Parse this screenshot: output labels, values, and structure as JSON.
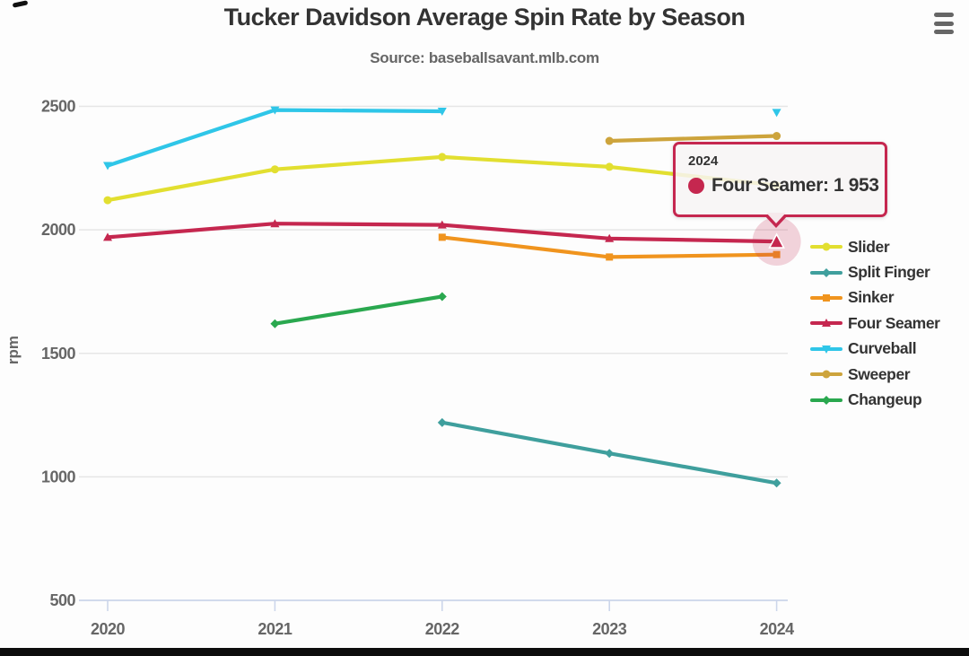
{
  "header": {
    "title": "Tucker Davidson Average Spin Rate by Season",
    "subtitle": "Source: baseballsavant.mlb.com",
    "menu_icon": "hamburger-icon"
  },
  "chart_data": {
    "type": "line",
    "categories": [
      "2020",
      "2021",
      "2022",
      "2023",
      "2024"
    ],
    "xlabel": "",
    "ylabel": "rpm",
    "yticks": [
      500,
      1000,
      1500,
      2000,
      2500
    ],
    "ylim": [
      500,
      2500
    ],
    "grid": "horizontal",
    "legend_position": "right",
    "series": [
      {
        "name": "Slider",
        "color": "#e2df30",
        "marker": "circle",
        "values": [
          2120,
          2245,
          2295,
          2255,
          2180
        ]
      },
      {
        "name": "Split Finger",
        "color": "#3f9f9d",
        "marker": "diamond",
        "values": [
          null,
          null,
          1220,
          1095,
          975
        ]
      },
      {
        "name": "Sinker",
        "color": "#f0941e",
        "marker": "square",
        "values": [
          null,
          null,
          1970,
          1890,
          1900
        ]
      },
      {
        "name": "Four Seamer",
        "color": "#c5274f",
        "marker": "triangle",
        "values": [
          1970,
          2025,
          2020,
          1965,
          1953
        ]
      },
      {
        "name": "Curveball",
        "color": "#2fc6e8",
        "marker": "triangle-down",
        "values": [
          2260,
          2485,
          2480,
          null,
          2475
        ]
      },
      {
        "name": "Sweeper",
        "color": "#cda43c",
        "marker": "circle",
        "values": [
          null,
          null,
          null,
          2360,
          2380
        ]
      },
      {
        "name": "Changeup",
        "color": "#2aa84f",
        "marker": "diamond",
        "values": [
          null,
          1620,
          1730,
          null,
          null
        ]
      }
    ]
  },
  "tooltip": {
    "header": "2024",
    "series": "Four Seamer",
    "value": "1 953",
    "label": "Four Seamer: 1 953",
    "point_index": 4
  },
  "colors": {
    "title_text": "#333333",
    "muted_text": "#666666",
    "gridline": "#e6e6e6",
    "axis_line": "#ccd6eb",
    "tooltip_border": "#c5274f",
    "tooltip_bg": "#f7f5f5"
  }
}
